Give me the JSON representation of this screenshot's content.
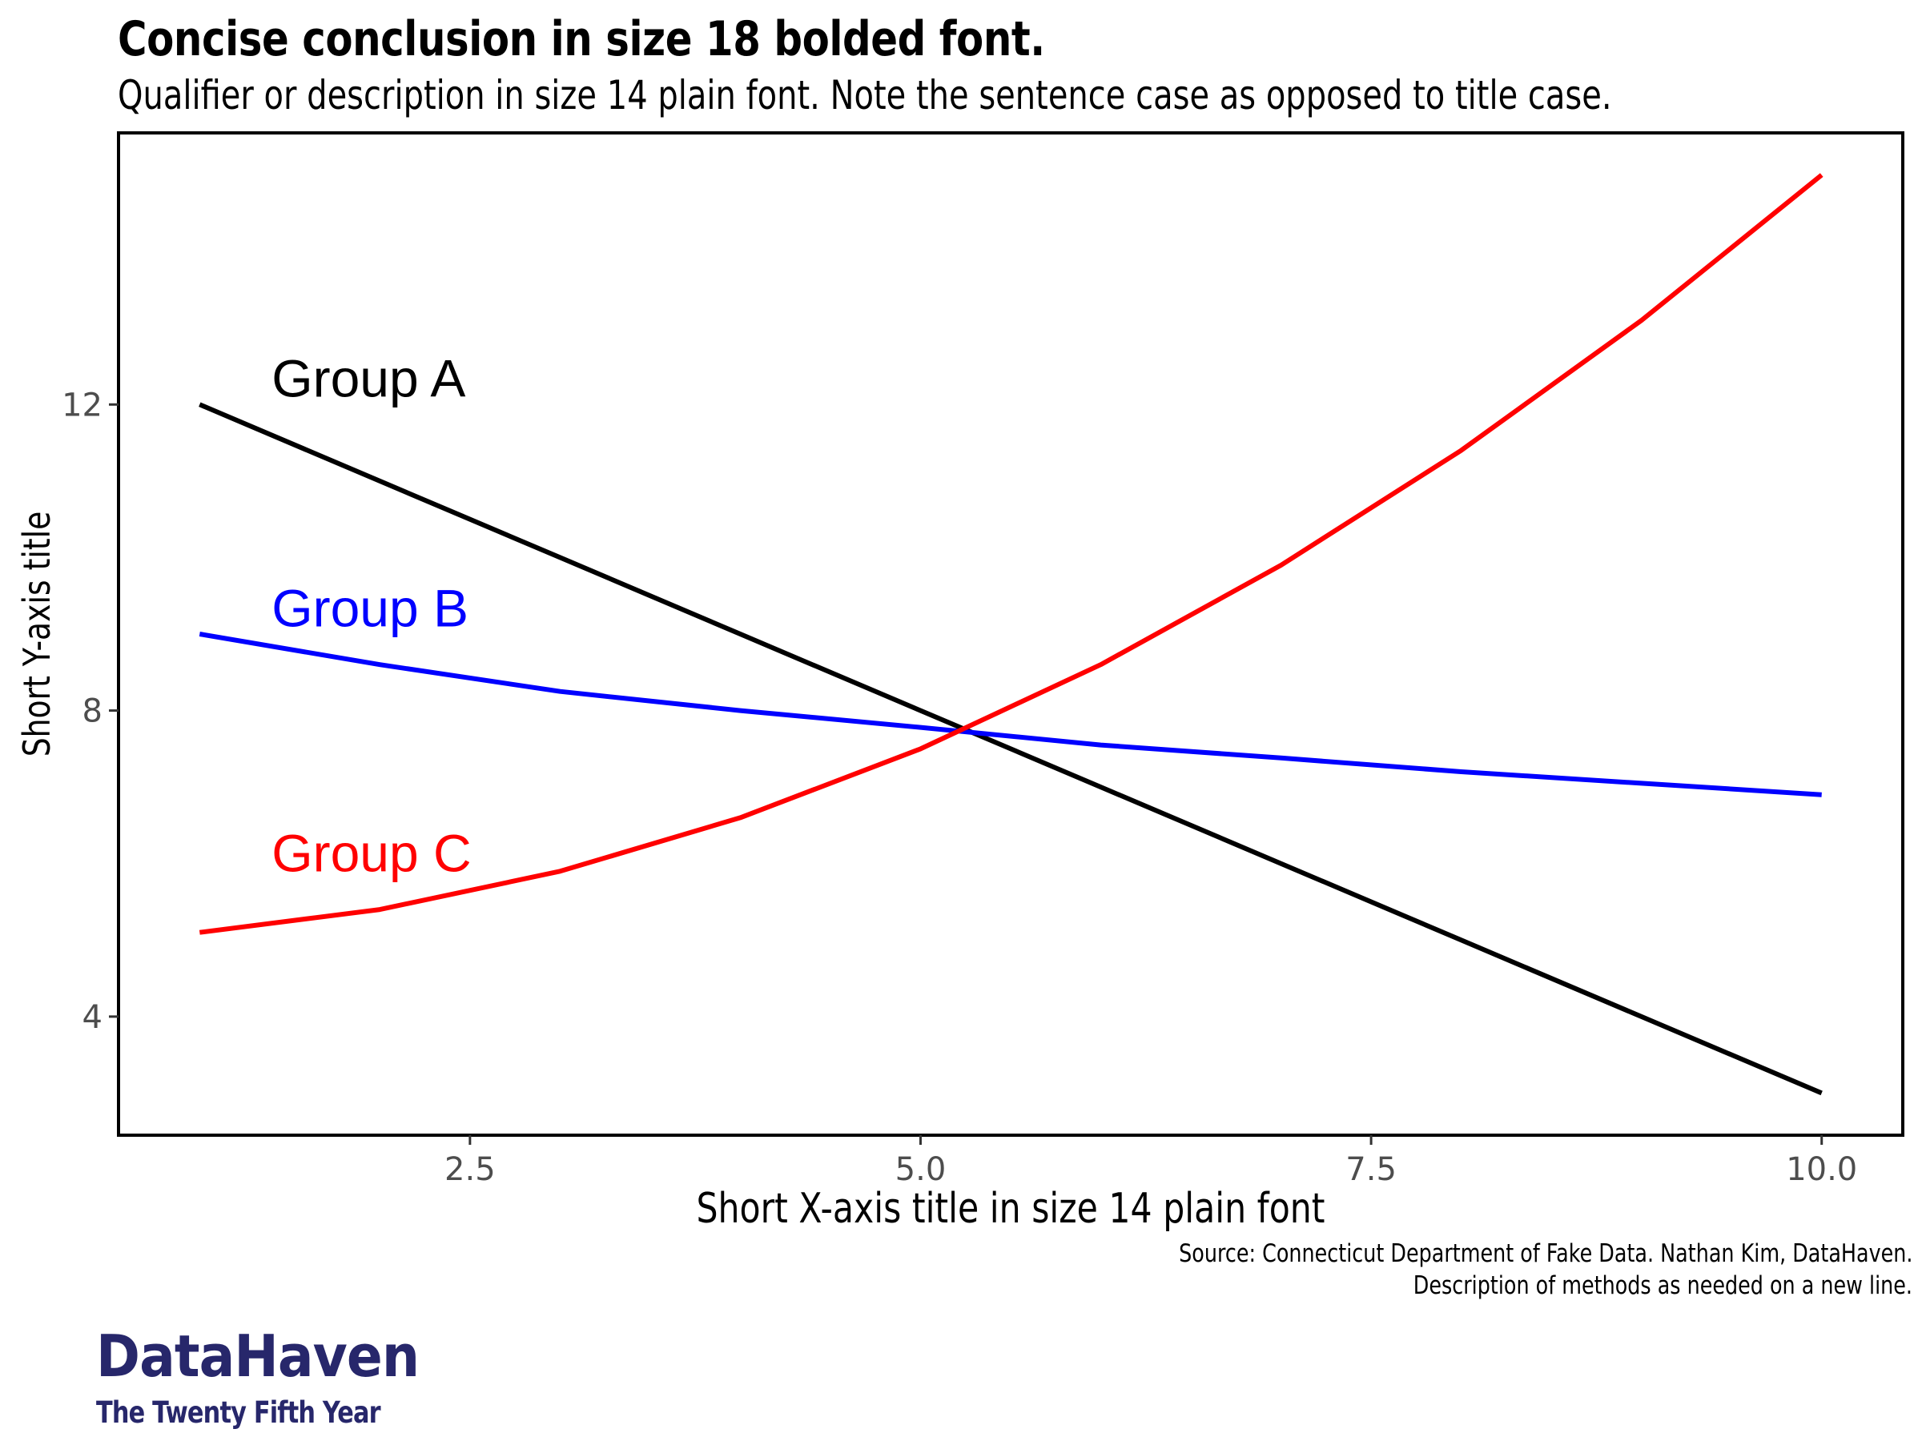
{
  "header": {
    "title": "Concise conclusion in size 18 bolded font.",
    "subtitle": "Qualifier or description in size 14 plain font. Note the sentence case as opposed to title case."
  },
  "footer": {
    "source_line1": "Source: Connecticut Department of Fake Data. Nathan Kim, DataHaven.",
    "source_line2": "Description of methods as needed on a new line.",
    "logo_main": "DataHaven",
    "logo_sub": "The Twenty Fifth Year",
    "logo_color": "#27276b"
  },
  "chart_data": {
    "type": "line",
    "xlabel": "Short X-axis title in size 14 plain font",
    "ylabel": "Short Y-axis title",
    "xlim": [
      0.55,
      10.45
    ],
    "ylim": [
      2.45,
      15.55
    ],
    "xticks": [
      2.5,
      5.0,
      7.5,
      10.0
    ],
    "xtick_labels": [
      "2.5",
      "5.0",
      "7.5",
      "10.0"
    ],
    "yticks": [
      4,
      8,
      12
    ],
    "ytick_labels": [
      "4",
      "8",
      "12"
    ],
    "grid": false,
    "legend": "direct labels",
    "x": [
      1,
      2,
      3,
      4,
      5,
      6,
      7,
      8,
      9,
      10
    ],
    "series": [
      {
        "name": "Group A",
        "color": "#000000",
        "values": [
          12,
          11,
          10,
          9,
          8,
          7,
          6,
          5,
          4,
          3
        ],
        "label_x": 1.4,
        "label_y": 12.1
      },
      {
        "name": "Group B",
        "color": "#0000ff",
        "values": [
          9.0,
          8.6,
          8.25,
          8.0,
          7.78,
          7.55,
          7.38,
          7.2,
          7.05,
          6.9
        ],
        "label_x": 1.4,
        "label_y": 9.1
      },
      {
        "name": "Group C",
        "color": "#ff0000",
        "values": [
          5.1,
          5.4,
          5.9,
          6.6,
          7.5,
          8.6,
          9.9,
          11.4,
          13.1,
          15.0
        ],
        "label_x": 1.4,
        "label_y": 5.9
      }
    ]
  }
}
